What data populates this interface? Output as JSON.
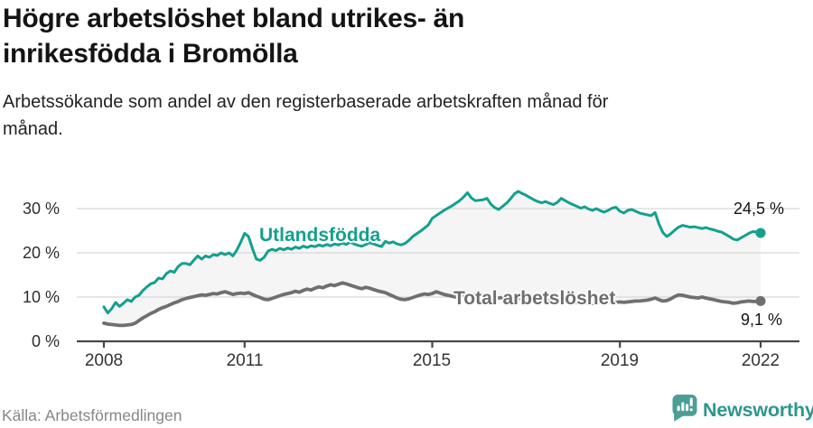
{
  "header": {
    "title_lines": [
      "Högre arbetslöshet bland utrikes- än",
      "inrikesfödda i Bromölla"
    ],
    "subtitle_lines": [
      "Arbetssökande som andel av den registerbaserade arbetskraften månad för",
      "månad."
    ]
  },
  "chart_data": {
    "type": "line",
    "title": "Högre arbetslöshet bland utrikes- än inrikesfödda i Bromölla",
    "x_monthly_start": "2008-01",
    "x_monthly_end": "2022-01",
    "x_axis": {
      "ticks": [
        2008,
        2011,
        2015,
        2019,
        2022
      ],
      "tick_labels": [
        "2008",
        "2011",
        "2015",
        "2019",
        "2022"
      ],
      "range": [
        2008,
        2022.1
      ]
    },
    "y_axis": {
      "unit": "%",
      "ticks": [
        0,
        10,
        20,
        30
      ],
      "tick_labels": [
        "0 %",
        "10 %",
        "20 %",
        "30 %"
      ],
      "range": [
        0,
        36
      ]
    },
    "grid": "horizontal",
    "area_between_series": true,
    "colors": {
      "grid": "#d8d8d8",
      "axis": "#474747",
      "area": "#efefef"
    },
    "series": [
      {
        "name": "Utlandsfödda",
        "color": "#13a08e",
        "end_label": "24,5 %",
        "end_value": 24.5,
        "values": [
          7.8,
          6.4,
          7.4,
          8.8,
          7.9,
          8.6,
          9.4,
          9.0,
          10.0,
          10.4,
          11.5,
          12.3,
          13.0,
          13.3,
          14.3,
          14.1,
          15.3,
          15.9,
          15.6,
          16.9,
          17.6,
          17.6,
          17.3,
          18.3,
          19.3,
          18.6,
          19.3,
          19.0,
          19.6,
          19.4,
          20.0,
          19.6,
          20.0,
          19.3,
          20.6,
          22.4,
          24.4,
          23.7,
          21.0,
          18.6,
          18.3,
          19.0,
          20.4,
          20.8,
          20.5,
          21.0,
          20.7,
          21.1,
          20.8,
          21.3,
          21.0,
          21.5,
          21.2,
          21.6,
          21.4,
          21.8,
          21.5,
          21.9,
          21.6,
          22.0,
          21.8,
          22.2,
          21.9,
          22.4,
          22.0,
          21.7,
          21.5,
          21.9,
          22.3,
          22.0,
          21.7,
          21.4,
          22.6,
          22.2,
          22.5,
          22.0,
          21.8,
          22.1,
          22.8,
          23.7,
          24.3,
          24.9,
          25.6,
          26.3,
          27.8,
          28.4,
          29.0,
          29.6,
          30.1,
          30.6,
          31.2,
          31.8,
          32.6,
          33.6,
          32.4,
          31.8,
          31.9,
          32.0,
          32.3,
          31.0,
          30.2,
          29.8,
          30.5,
          31.2,
          32.2,
          33.3,
          33.9,
          33.4,
          33.0,
          32.5,
          32.0,
          31.6,
          31.3,
          31.6,
          31.2,
          30.9,
          31.4,
          32.3,
          31.8,
          31.3,
          30.9,
          30.5,
          30.1,
          30.4,
          29.9,
          29.6,
          30.0,
          29.5,
          29.2,
          29.6,
          30.1,
          30.3,
          29.4,
          29.0,
          29.6,
          29.8,
          29.4,
          29.0,
          28.8,
          28.6,
          28.4,
          29.1,
          26.5,
          24.6,
          23.7,
          24.3,
          25.1,
          25.8,
          26.2,
          26.0,
          25.8,
          25.9,
          25.7,
          25.5,
          25.7,
          25.4,
          25.2,
          24.9,
          24.7,
          24.2,
          23.7,
          23.1,
          22.9,
          23.4,
          23.9,
          24.4,
          24.8,
          24.7,
          24.5
        ]
      },
      {
        "name": "Total arbetslöshet",
        "color": "#6f6f6f",
        "end_label": "9,1 %",
        "end_value": 9.1,
        "values": [
          4.1,
          3.9,
          3.8,
          3.7,
          3.6,
          3.6,
          3.7,
          3.8,
          4.1,
          4.7,
          5.3,
          5.8,
          6.3,
          6.7,
          7.2,
          7.6,
          7.9,
          8.3,
          8.7,
          9.0,
          9.4,
          9.7,
          9.9,
          10.1,
          10.3,
          10.5,
          10.4,
          10.6,
          10.8,
          10.7,
          11.0,
          11.2,
          10.9,
          10.6,
          10.8,
          10.9,
          10.8,
          11.0,
          10.6,
          10.2,
          9.9,
          9.5,
          9.4,
          9.7,
          10.0,
          10.3,
          10.6,
          10.8,
          11.0,
          11.3,
          11.1,
          11.5,
          11.8,
          11.6,
          12.0,
          12.3,
          12.1,
          12.5,
          12.8,
          12.6,
          12.9,
          13.2,
          13.0,
          12.7,
          12.4,
          12.1,
          11.9,
          12.2,
          12.0,
          11.7,
          11.4,
          11.2,
          11.0,
          10.6,
          10.2,
          9.8,
          9.5,
          9.4,
          9.6,
          9.9,
          10.2,
          10.5,
          10.7,
          10.6,
          10.8,
          11.2,
          10.9,
          10.6,
          10.4,
          10.2,
          10.0,
          10.2,
          10.4,
          10.6,
          10.5,
          10.4,
          10.3,
          10.4,
          10.2,
          10.0,
          9.9,
          9.8,
          9.9,
          10.0,
          9.9,
          9.8,
          9.7,
          9.6,
          9.5,
          9.6,
          9.4,
          9.3,
          9.2,
          9.1,
          9.2,
          9.3,
          9.2,
          9.1,
          9.0,
          8.9,
          8.9,
          8.8,
          8.8,
          8.7,
          8.7,
          8.6,
          8.7,
          8.8,
          8.8,
          8.9,
          8.9,
          8.8,
          8.9,
          8.8,
          8.9,
          9.0,
          9.1,
          9.1,
          9.2,
          9.3,
          9.5,
          9.8,
          9.4,
          9.1,
          9.2,
          9.6,
          10.1,
          10.5,
          10.4,
          10.2,
          10.0,
          9.9,
          9.8,
          10.0,
          9.8,
          9.6,
          9.4,
          9.2,
          9.0,
          8.9,
          8.8,
          8.6,
          8.7,
          8.9,
          9.0,
          9.1,
          9.0,
          9.0,
          9.1
        ]
      }
    ]
  },
  "footer": {
    "source": "Källa: Arbetsförmedlingen",
    "brand": "Newsworthy"
  }
}
